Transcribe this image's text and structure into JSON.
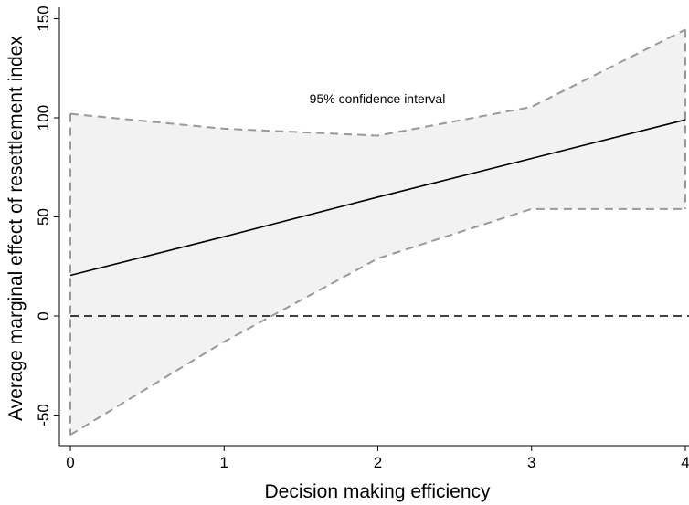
{
  "chart_data": {
    "type": "line",
    "xlabel": "Decision making efficiency",
    "ylabel": "Average marginal effect of resettlement index",
    "xlim": [
      0,
      4
    ],
    "ylim": [
      -60,
      150
    ],
    "xticks": [
      0,
      1,
      2,
      3,
      4
    ],
    "yticks": [
      -50,
      0,
      50,
      100,
      150
    ],
    "grid": false,
    "annotation": "95% confidence interval",
    "x": [
      0,
      1,
      2,
      3,
      4
    ],
    "series": [
      {
        "values": [
          20.5,
          40,
          60,
          79.5,
          99
        ],
        "color": "#000000",
        "style": "solid"
      },
      {
        "values": [
          102,
          94.5,
          91,
          105.5,
          144.5
        ],
        "color": "#999999",
        "style": "dashed"
      },
      {
        "values": [
          -60,
          -13,
          29,
          54,
          54
        ],
        "color": "#999999",
        "style": "dashed"
      }
    ],
    "reference_line": {
      "y": 0,
      "style": "dashed",
      "color": "#000000"
    },
    "band_fill": "#f2f2f2"
  }
}
